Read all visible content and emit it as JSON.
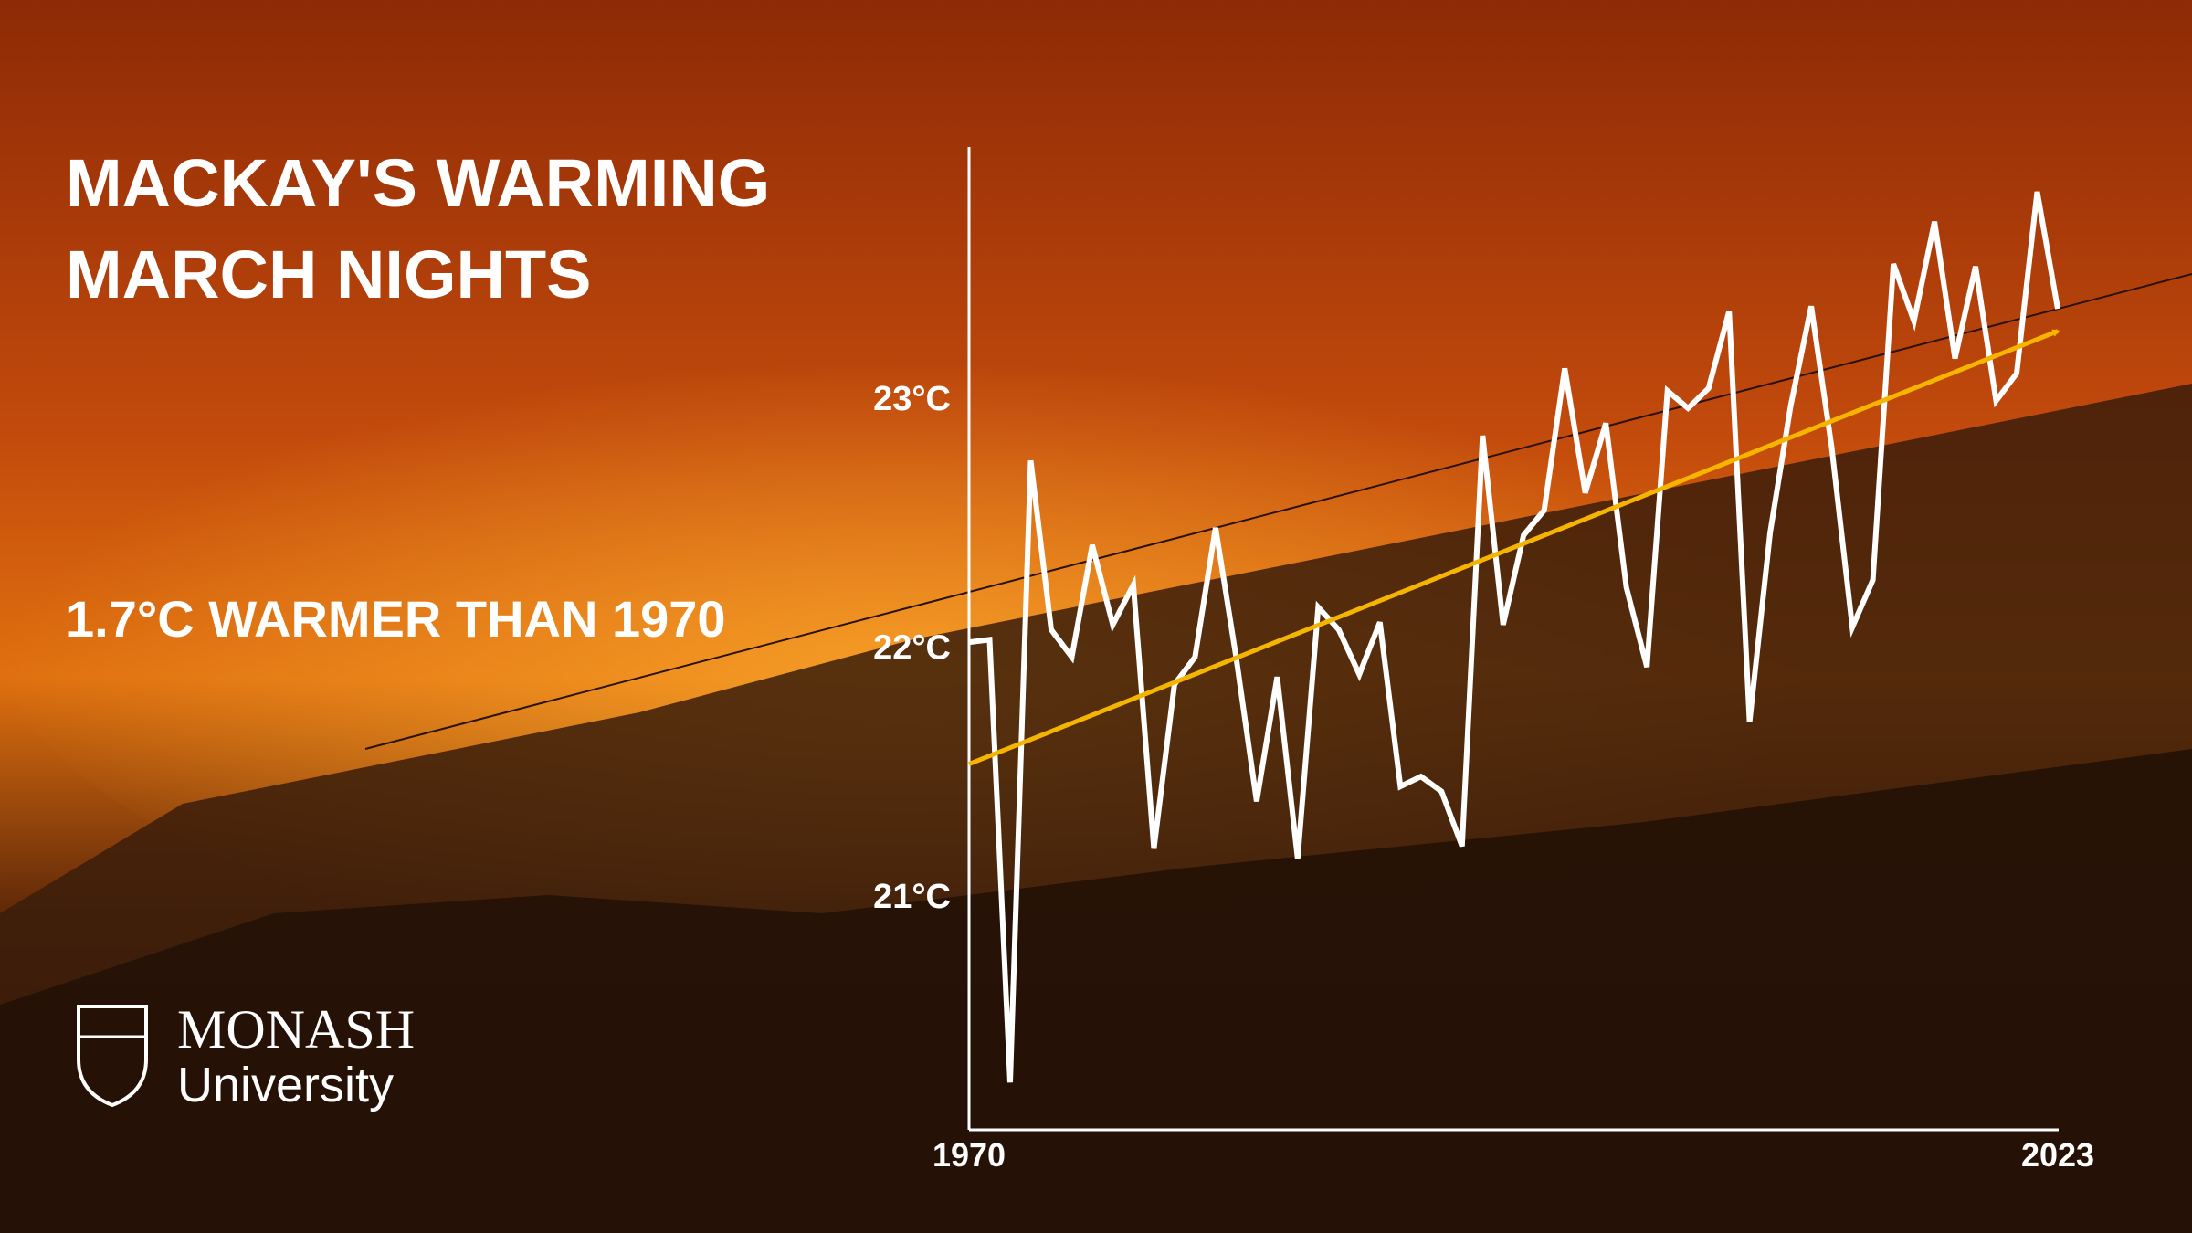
{
  "chart_data": {
    "type": "line",
    "title": "MACKAY'S WARMING MARCH NIGHTS",
    "subtitle": "1.7°C WARMER THAN 1970",
    "x": [
      1970,
      1971,
      1972,
      1973,
      1974,
      1975,
      1976,
      1977,
      1978,
      1979,
      1980,
      1981,
      1982,
      1983,
      1984,
      1985,
      1986,
      1987,
      1988,
      1989,
      1990,
      1991,
      1992,
      1993,
      1994,
      1995,
      1996,
      1997,
      1998,
      1999,
      2000,
      2001,
      2002,
      2003,
      2004,
      2005,
      2006,
      2007,
      2008,
      2009,
      2010,
      2011,
      2012,
      2013,
      2014,
      2015,
      2016,
      2017,
      2018,
      2019,
      2020,
      2021,
      2022,
      2023
    ],
    "series": [
      {
        "color": "#ffffff",
        "values": [
          22.02,
          22.03,
          20.25,
          22.75,
          22.07,
          21.96,
          22.41,
          22.09,
          22.25,
          21.19,
          21.85,
          21.96,
          22.48,
          21.96,
          21.38,
          21.88,
          21.15,
          22.16,
          22.07,
          21.89,
          22.1,
          21.44,
          21.48,
          21.42,
          21.2,
          22.85,
          22.09,
          22.45,
          22.55,
          23.12,
          22.62,
          22.9,
          22.24,
          21.92,
          23.03,
          22.96,
          23.04,
          23.35,
          21.7,
          22.46,
          22.97,
          23.37,
          22.8,
          22.08,
          22.27,
          23.54,
          23.31,
          23.71,
          23.16,
          23.53,
          22.99,
          23.1,
          23.83,
          23.36
        ]
      }
    ],
    "trend": {
      "color": "#f5b400",
      "x": [
        1970,
        2023
      ],
      "values": [
        21.53,
        23.27
      ]
    },
    "xlim": [
      1970,
      2023
    ],
    "xticks": [
      1970,
      2023
    ],
    "ylim": [
      20.06,
      24.01
    ],
    "yticks": [
      {
        "value": 21,
        "label": "21°C"
      },
      {
        "value": 22,
        "label": "22°C"
      },
      {
        "value": 23,
        "label": "23°C"
      }
    ]
  },
  "logo": {
    "name": "MONASH",
    "subtitle": "University"
  }
}
